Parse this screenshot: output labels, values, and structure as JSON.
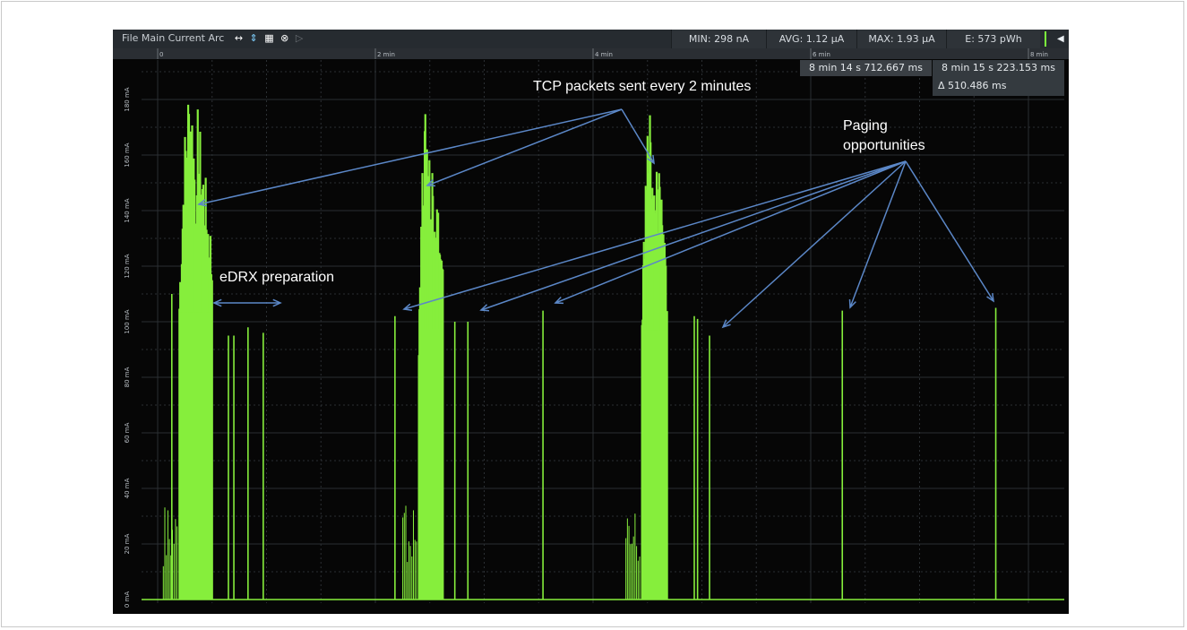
{
  "toolbar": {
    "menu_text": "File Main Current Arc",
    "icons": [
      "arrows-horizontal-icon",
      "arrows-vertical-icon",
      "table-icon",
      "close-circle-icon",
      "play-step-icon"
    ],
    "min": "MIN: 298 nA",
    "avg": "AVG: 1.12 µA",
    "max": "MAX: 1.93 µA",
    "energy": "E: 573 pWh",
    "accent_color": "#7cfc3c"
  },
  "cursors": {
    "a_time": "8 min 14 s 712.667 ms",
    "b_time": "8 min 15 s 223.153 ms",
    "delta": "Δ 510.486 ms"
  },
  "chart_data": {
    "type": "line",
    "title": "",
    "xlabel": "",
    "ylabel": "",
    "x_tick_labels": [
      "0",
      "2 min",
      "4 min",
      "6 min",
      "8 min"
    ],
    "x_tick_values_min": [
      0,
      2,
      4,
      6,
      8
    ],
    "y_tick_labels": [
      "0 mA",
      "20 mA",
      "40 mA",
      "60 mA",
      "80 mA",
      "100 mA",
      "120 mA",
      "140 mA",
      "160 mA",
      "180 mA"
    ],
    "y_tick_values_mA": [
      0,
      20,
      40,
      60,
      80,
      100,
      120,
      140,
      160,
      180
    ],
    "xlim_min": [
      -0.05,
      8.15
    ],
    "ylim_mA": [
      -2,
      192
    ],
    "grid": true,
    "series_color": "#86ee3c",
    "series": [
      {
        "name": "",
        "bursts": [
          {
            "start": 0.2,
            "end": 0.5,
            "peak": 188
          },
          {
            "start": 2.4,
            "end": 2.62,
            "peak": 177
          },
          {
            "start": 4.45,
            "end": 4.68,
            "peak": 176
          }
        ],
        "spikes": [
          {
            "x": 0.13,
            "y": 110
          },
          {
            "x": 0.65,
            "y": 95
          },
          {
            "x": 0.7,
            "y": 95
          },
          {
            "x": 0.83,
            "y": 98
          },
          {
            "x": 0.97,
            "y": 96
          },
          {
            "x": 2.18,
            "y": 102
          },
          {
            "x": 2.73,
            "y": 100
          },
          {
            "x": 2.85,
            "y": 100
          },
          {
            "x": 3.54,
            "y": 104
          },
          {
            "x": 4.93,
            "y": 102
          },
          {
            "x": 4.96,
            "y": 101
          },
          {
            "x": 5.07,
            "y": 95
          },
          {
            "x": 6.29,
            "y": 104
          },
          {
            "x": 7.7,
            "y": 105
          }
        ]
      }
    ]
  },
  "annotations": {
    "tcp": "TCP packets sent every 2 minutes",
    "paging_line1": "Paging",
    "paging_line2": "opportunities",
    "edrx": "eDRX preparation"
  }
}
